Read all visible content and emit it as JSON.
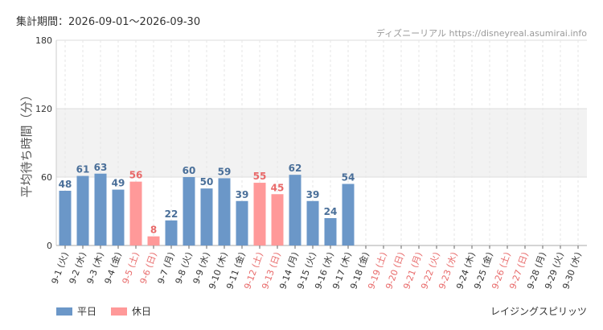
{
  "header": {
    "period": "集計期間：2026-09-01〜2026-09-30",
    "credit": "ディズニーリアル https://disneyreal.asumirai.info"
  },
  "footer": {
    "attraction": "レイジングスピリッツ"
  },
  "chart_data": {
    "type": "bar",
    "ylabel": "平均待ち時間（分）",
    "ylim": [
      0,
      180
    ],
    "yticks": [
      "0",
      "60",
      "120",
      "180"
    ],
    "categories": [
      "9-1 (火)",
      "9-2 (水)",
      "9-3 (木)",
      "9-4 (金)",
      "9-5 (土)",
      "9-6 (日)",
      "9-7 (月)",
      "9-8 (火)",
      "9-9 (水)",
      "9-10 (木)",
      "9-11 (金)",
      "9-12 (土)",
      "9-13 (日)",
      "9-14 (月)",
      "9-15 (火)",
      "9-16 (水)",
      "9-17 (木)",
      "9-18 (金)",
      "9-19 (土)",
      "9-20 (日)",
      "9-21 (月)",
      "9-22 (火)",
      "9-23 (水)",
      "9-24 (木)",
      "9-25 (金)",
      "9-26 (土)",
      "9-27 (日)",
      "9-28 (月)",
      "9-29 (火)",
      "9-30 (水)"
    ],
    "values": [
      48,
      61,
      63,
      49,
      56,
      8,
      22,
      60,
      50,
      59,
      39,
      55,
      45,
      62,
      39,
      24,
      54,
      null,
      null,
      null,
      null,
      null,
      null,
      null,
      null,
      null,
      null,
      null,
      null,
      null
    ],
    "day_type": [
      "weekday",
      "weekday",
      "weekday",
      "weekday",
      "holiday",
      "holiday",
      "weekday",
      "weekday",
      "weekday",
      "weekday",
      "weekday",
      "holiday",
      "holiday",
      "weekday",
      "weekday",
      "weekday",
      "weekday",
      "weekday",
      "holiday",
      "holiday",
      "holiday",
      "holiday",
      "holiday",
      "weekday",
      "weekday",
      "holiday",
      "holiday",
      "weekday",
      "weekday",
      "weekday"
    ],
    "legend": [
      {
        "key": "weekday",
        "label": "平日",
        "color": "#6b97c8"
      },
      {
        "key": "holiday",
        "label": "休日",
        "color": "#ff9999"
      }
    ],
    "label_colors": {
      "weekday": "#4a6f99",
      "holiday": "#e86a6a"
    },
    "axis_label_colors": {
      "weekday": "#333333",
      "holiday": "#e86a6a"
    },
    "band_color": "#f2f2f2"
  }
}
